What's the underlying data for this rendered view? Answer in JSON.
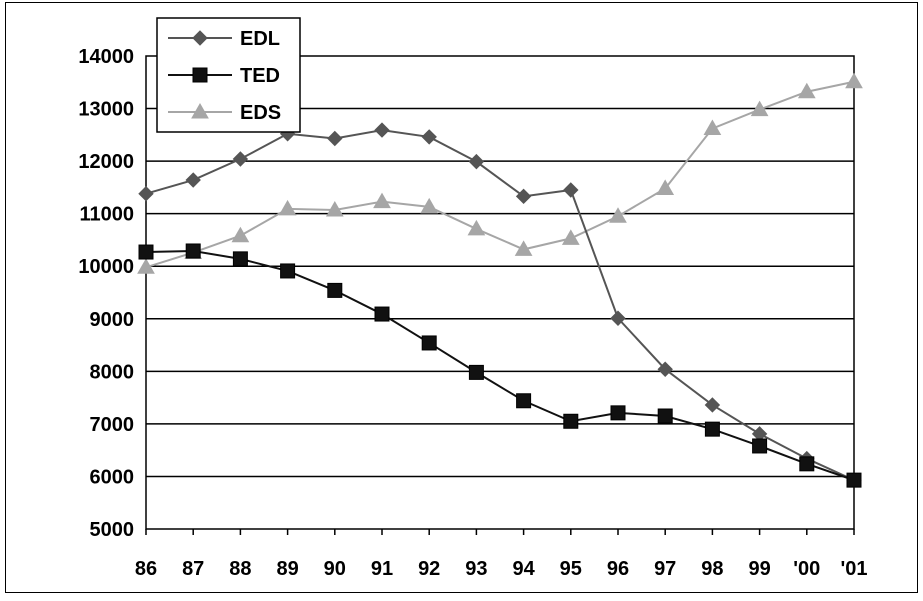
{
  "chart_data": {
    "type": "line",
    "title": "",
    "xlabel": "",
    "ylabel": "",
    "categories": [
      "86",
      "87",
      "88",
      "89",
      "90",
      "91",
      "92",
      "93",
      "94",
      "95",
      "96",
      "97",
      "98",
      "99",
      "'00",
      "'01"
    ],
    "ylim": [
      5000,
      14000
    ],
    "yticks": [
      5000,
      6000,
      7000,
      8000,
      9000,
      10000,
      11000,
      12000,
      13000,
      14000
    ],
    "grid": true,
    "legend_position": "top-left",
    "series": [
      {
        "name": "EDL",
        "marker": "diamond",
        "color": "#555555",
        "values": [
          11380,
          11640,
          12040,
          12520,
          12430,
          12590,
          12460,
          11990,
          11330,
          11450,
          9010,
          8040,
          7360,
          6810,
          6340,
          5930
        ]
      },
      {
        "name": "TED",
        "marker": "square",
        "color": "#111111",
        "values": [
          10270,
          10290,
          10140,
          9910,
          9540,
          9090,
          8540,
          7980,
          7440,
          7050,
          7210,
          7150,
          6900,
          6580,
          6240,
          5930
        ]
      },
      {
        "name": "EDS",
        "marker": "triangle",
        "color": "#a6a6a6",
        "values": [
          9980,
          10260,
          10580,
          11090,
          11070,
          11230,
          11130,
          10710,
          10320,
          10530,
          10950,
          11480,
          12620,
          12980,
          13320,
          13510
        ]
      }
    ]
  }
}
